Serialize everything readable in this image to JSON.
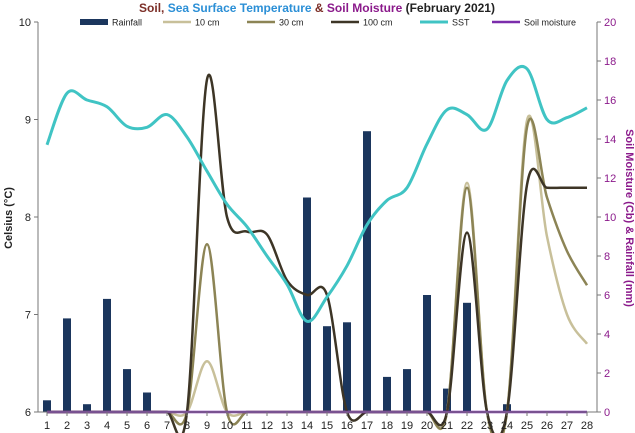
{
  "chart_data": {
    "type": "line",
    "title": {
      "parts": [
        {
          "text": "Soil",
          "color": "#7b2d26"
        },
        {
          "text": ", ",
          "color": "#7b2d26"
        },
        {
          "text": "Sea Surface Temperature",
          "color": "#2b8fd6"
        },
        {
          "text": " & ",
          "color": "#7b2d26"
        },
        {
          "text": "Soil Moisture",
          "color": "#8b1a8b"
        },
        {
          "text": " (February 2021)",
          "color": "#222222"
        }
      ]
    },
    "ylabel_left": "Celsius (°C)",
    "ylabel_right": "Soil Moisture (Cb) & Rainfall (mm)",
    "ylim_left": [
      6,
      10
    ],
    "ylim_right": [
      0,
      20
    ],
    "left_ticks": [
      "6",
      "7",
      "8",
      "9",
      "10"
    ],
    "right_ticks": [
      "0",
      "2",
      "4",
      "6",
      "8",
      "10",
      "12",
      "14",
      "16",
      "18",
      "20"
    ],
    "x": [
      1,
      2,
      3,
      4,
      5,
      6,
      7,
      8,
      9,
      10,
      11,
      12,
      13,
      14,
      15,
      16,
      17,
      18,
      19,
      20,
      21,
      22,
      23,
      24,
      25,
      26,
      27,
      28
    ],
    "x_ticks": [
      "1",
      "2",
      "3",
      "4",
      "5",
      "6",
      "7",
      "8",
      "9",
      "10",
      "11",
      "12",
      "13",
      "14",
      "15",
      "16",
      "17",
      "18",
      "19",
      "20",
      "21",
      "22",
      "23",
      "24",
      "25",
      "26",
      "27",
      "28"
    ],
    "legend": [
      "Rainfall",
      "10 cm",
      "30 cm",
      "100 cm",
      "SST",
      "Soil moisture"
    ],
    "series": [
      {
        "name": "Rainfall",
        "axis": "right",
        "kind": "bar",
        "color": "#1b365d",
        "values": [
          0.6,
          4.8,
          0.4,
          5.8,
          2.2,
          1.0,
          0,
          0,
          0,
          0,
          0,
          0,
          0,
          11,
          4.4,
          4.6,
          14.4,
          1.8,
          2.2,
          6.0,
          1.2,
          5.6,
          0,
          0.4,
          0,
          0,
          0,
          0
        ]
      },
      {
        "name": "10 cm",
        "axis": "left",
        "kind": "line",
        "color": "#c8c09a",
        "values": [
          6,
          6,
          6,
          6,
          6,
          6,
          6,
          6,
          6.52,
          6,
          6,
          6,
          6,
          6,
          6,
          6,
          6,
          6,
          6,
          6,
          6,
          8.35,
          6,
          6,
          8.99,
          7.8,
          7.0,
          6.7
        ]
      },
      {
        "name": "30 cm",
        "axis": "left",
        "kind": "line",
        "color": "#8c8455",
        "values": [
          6,
          6,
          6,
          6,
          6,
          6,
          6,
          6,
          7.72,
          6,
          6,
          6,
          6,
          6,
          6,
          6,
          6,
          6,
          6,
          6,
          6,
          8.3,
          6,
          6,
          8.92,
          8.2,
          7.65,
          7.3
        ]
      },
      {
        "name": "100 cm",
        "axis": "left",
        "kind": "line",
        "color": "#3d3526",
        "values": [
          6,
          6,
          6,
          6,
          6,
          6,
          6,
          6,
          9.41,
          8.0,
          7.85,
          7.82,
          7.35,
          7.2,
          7.2,
          6,
          6,
          6,
          6,
          6,
          6,
          7.84,
          6,
          6,
          8.33,
          8.3,
          8.3,
          8.3
        ]
      },
      {
        "name": "SST",
        "axis": "left",
        "kind": "line",
        "color": "#40c4c4",
        "values": [
          8.74,
          9.27,
          9.2,
          9.13,
          8.93,
          8.92,
          9.05,
          8.82,
          8.47,
          8.13,
          7.9,
          7.6,
          7.31,
          6.93,
          7.18,
          7.5,
          7.92,
          8.17,
          8.3,
          8.75,
          9.1,
          9.05,
          8.9,
          9.4,
          9.52,
          9.0,
          9.02,
          9.12
        ]
      },
      {
        "name": "Soil moisture",
        "axis": "right",
        "kind": "line",
        "color": "#7b2cab",
        "values": [
          0,
          0,
          0,
          0,
          0,
          0,
          0,
          0,
          0,
          0,
          0,
          0,
          0,
          0,
          0,
          0,
          0,
          0,
          0,
          0,
          0,
          0,
          0,
          0,
          0,
          0,
          0,
          0
        ]
      }
    ],
    "grid": false,
    "legend_position": "top"
  },
  "colors": {
    "left_axis": "#222222",
    "right_axis": "#8b1a8b"
  }
}
